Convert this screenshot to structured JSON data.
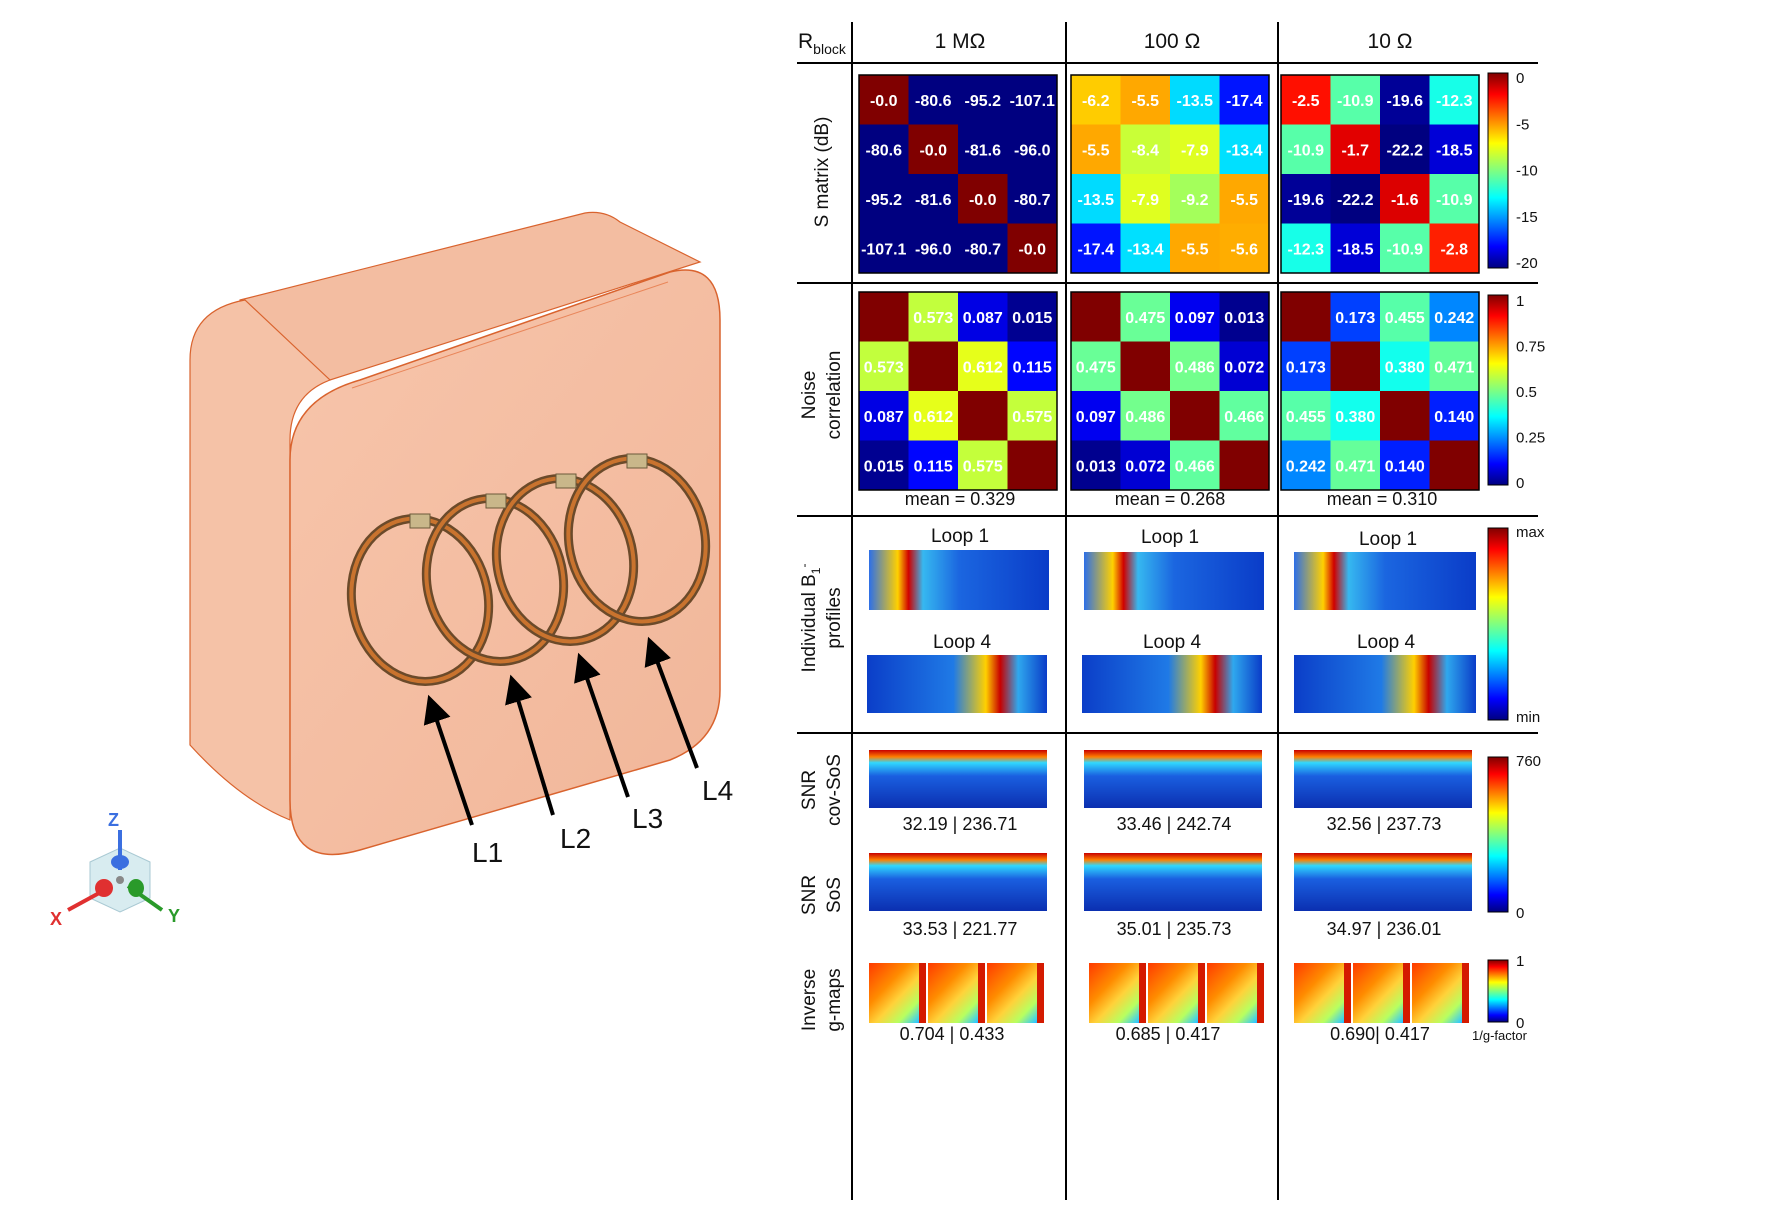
{
  "coil_model": {
    "loop_labels": [
      "L1",
      "L2",
      "L3",
      "L4"
    ],
    "axis_labels": {
      "x": "X",
      "y": "Y",
      "z": "Z"
    }
  },
  "table": {
    "corner_label": {
      "base": "R",
      "sub": "block"
    },
    "column_headers": [
      "1 MΩ",
      "100 Ω",
      "10 Ω"
    ],
    "row_labels": {
      "s_matrix": "S matrix (dB)",
      "noise_corr_line1": "Noise",
      "noise_corr_line2": "correlation",
      "b1_line1": "Individual B",
      "b1_sub": "1",
      "b1_sup": "-",
      "b1_line2": "profiles",
      "snr_cov_line1": "SNR",
      "snr_cov_line2": "cov-SoS",
      "snr_sos_line1": "SNR",
      "snr_sos_line2": "SoS",
      "gmaps_line1": "Inverse",
      "gmaps_line2": "g-maps"
    },
    "loop_captions": {
      "top": "Loop 1",
      "bottom": "Loop 4"
    },
    "colorbars": {
      "s_matrix": [
        "0",
        "-5",
        "-10",
        "-15",
        "-20"
      ],
      "noise_corr": [
        "1",
        "0.75",
        "0.5",
        "0.25",
        "0"
      ],
      "b1": [
        "max",
        "min"
      ],
      "snr": [
        "760",
        "0"
      ],
      "gmaps": [
        "1",
        "0"
      ],
      "gmaps_unit": "1/g-factor"
    },
    "colorbar_ranges": {
      "s_matrix": [
        -20,
        0
      ],
      "noise_corr": [
        0,
        1
      ],
      "snr": [
        0,
        760
      ],
      "gmaps": [
        0,
        1
      ]
    },
    "s_matrix": [
      [
        [
          "-0.0",
          "-80.6",
          "-95.2",
          "-107.1"
        ],
        [
          "-80.6",
          "-0.0",
          "-81.6",
          "-96.0"
        ],
        [
          "-95.2",
          "-81.6",
          "-0.0",
          "-80.7"
        ],
        [
          "-107.1",
          "-96.0",
          "-80.7",
          "-0.0"
        ]
      ],
      [
        [
          "-6.2",
          "-5.5",
          "-13.5",
          "-17.4"
        ],
        [
          "-5.5",
          "-8.4",
          "-7.9",
          "-13.4"
        ],
        [
          "-13.5",
          "-7.9",
          "-9.2",
          "-5.5"
        ],
        [
          "-17.4",
          "-13.4",
          "-5.5",
          "-5.6"
        ]
      ],
      [
        [
          "-2.5",
          "-10.9",
          "-19.6",
          "-12.3"
        ],
        [
          "-10.9",
          "-1.7",
          "-22.2",
          "-18.5"
        ],
        [
          "-19.6",
          "-22.2",
          "-1.6",
          "-10.9"
        ],
        [
          "-12.3",
          "-18.5",
          "-10.9",
          "-2.8"
        ]
      ]
    ],
    "noise_corr": [
      [
        [
          "",
          "0.573",
          "0.087",
          "0.015"
        ],
        [
          "0.573",
          "",
          "0.612",
          "0.115"
        ],
        [
          "0.087",
          "0.612",
          "",
          "0.575"
        ],
        [
          "0.015",
          "0.115",
          "0.575",
          ""
        ]
      ],
      [
        [
          "",
          "0.475",
          "0.097",
          "0.013"
        ],
        [
          "0.475",
          "",
          "0.486",
          "0.072"
        ],
        [
          "0.097",
          "0.486",
          "",
          "0.466"
        ],
        [
          "0.013",
          "0.072",
          "0.466",
          ""
        ]
      ],
      [
        [
          "",
          "0.173",
          "0.455",
          "0.242"
        ],
        [
          "0.173",
          "",
          "0.380",
          "0.471"
        ],
        [
          "0.455",
          "0.380",
          "",
          "0.140"
        ],
        [
          "0.242",
          "0.471",
          "0.140",
          ""
        ]
      ]
    ],
    "noise_means": [
      "mean = 0.329",
      "mean = 0.268",
      "mean = 0.310"
    ],
    "snr_cov_sos": [
      "32.19 | 236.71",
      "33.46 | 242.74",
      "32.56 | 237.73"
    ],
    "snr_sos": [
      "33.53 | 221.77",
      "35.01 | 235.73",
      "34.97 | 236.01"
    ],
    "g_maps": [
      "0.704 | 0.433",
      "0.685 | 0.417",
      "0.690| 0.417"
    ]
  }
}
